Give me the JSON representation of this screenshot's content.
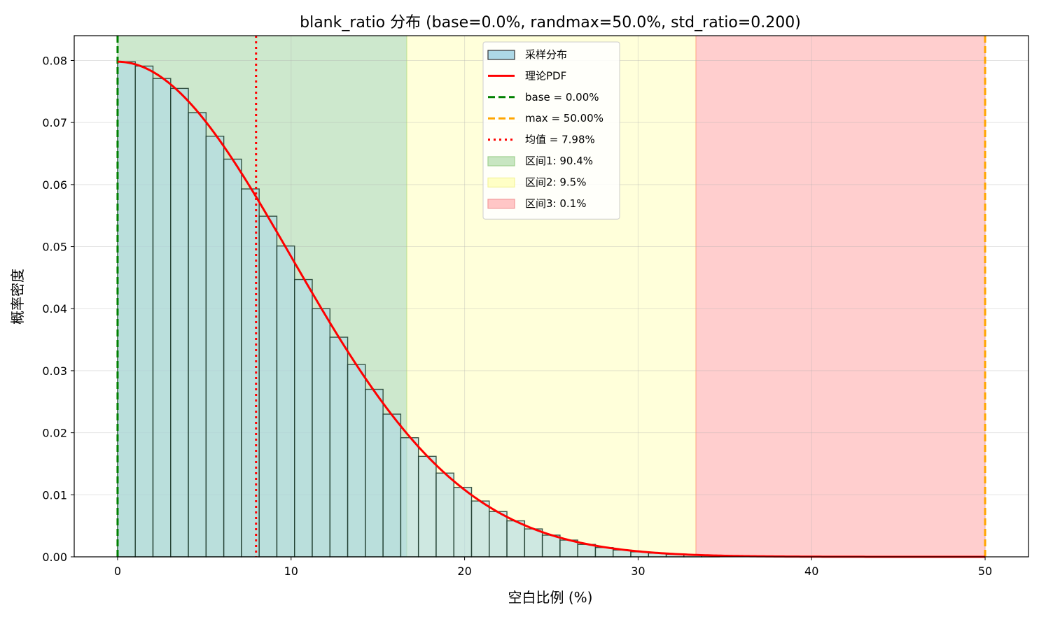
{
  "chart_data": {
    "type": "histogram",
    "title": "blank_ratio 分布 (base=0.0%, randmax=50.0%, std_ratio=0.200)",
    "xlabel": "空白比例 (%)",
    "ylabel": "概率密度",
    "xlim": [
      -2.5,
      52.5
    ],
    "ylim": [
      0,
      0.084
    ],
    "x_ticks": [
      0,
      10,
      20,
      30,
      40,
      50
    ],
    "x_tick_labels": [
      "0",
      "10",
      "20",
      "30",
      "40",
      "50"
    ],
    "y_ticks": [
      0.0,
      0.01,
      0.02,
      0.03,
      0.04,
      0.05,
      0.06,
      0.07,
      0.08
    ],
    "y_tick_labels": [
      "0.00",
      "0.01",
      "0.02",
      "0.03",
      "0.04",
      "0.05",
      "0.06",
      "0.07",
      "0.08"
    ],
    "grid": true,
    "legend_position": "top-center",
    "bins": {
      "edges_start": 0,
      "bin_width": 1.02,
      "values": [
        0.0798,
        0.0791,
        0.0771,
        0.0755,
        0.0716,
        0.0678,
        0.0641,
        0.0593,
        0.0549,
        0.0501,
        0.0447,
        0.04,
        0.0354,
        0.031,
        0.027,
        0.023,
        0.0192,
        0.0162,
        0.0135,
        0.0112,
        0.009,
        0.0073,
        0.0058,
        0.0045,
        0.0035,
        0.0027,
        0.002,
        0.0015,
        0.0011,
        0.0008,
        0.0006,
        0.0004,
        0.0003,
        0.0002
      ]
    },
    "pdf_curve": {
      "sigma": 10.0,
      "peak": 0.0798,
      "x_start": 0,
      "x_end": 50
    },
    "vlines": [
      {
        "name": "base = 0.00%",
        "x": 0.0,
        "color": "#008000",
        "style": "dashed"
      },
      {
        "name": "max = 50.00%",
        "x": 50.0,
        "color": "#FFA500",
        "style": "dashed"
      },
      {
        "name": "均值 = 7.98%",
        "x": 7.98,
        "color": "#FF0000",
        "style": "dotted"
      }
    ],
    "regions": [
      {
        "name": "区间1: 90.4%",
        "x0": 0.0,
        "x1": 16.67,
        "color": "#2ca02c"
      },
      {
        "name": "区间2: 9.5%",
        "x0": 16.67,
        "x1": 33.33,
        "color": "#ffff66"
      },
      {
        "name": "区间3: 0.1%",
        "x0": 33.33,
        "x1": 50.0,
        "color": "#ff3333"
      }
    ],
    "legend": [
      {
        "label": "采样分布",
        "kind": "patch",
        "color": "#add8e6",
        "edge": "#333333"
      },
      {
        "label": "理论PDF",
        "kind": "line",
        "color": "#FF0000",
        "style": "solid"
      },
      {
        "label": "base = 0.00%",
        "kind": "line",
        "color": "#008000",
        "style": "dashed"
      },
      {
        "label": "max = 50.00%",
        "kind": "line",
        "color": "#FFA500",
        "style": "dashed"
      },
      {
        "label": "均值 = 7.98%",
        "kind": "line",
        "color": "#FF0000",
        "style": "dotted"
      },
      {
        "label": "区间1: 90.4%",
        "kind": "patch",
        "color": "#c8e6c2",
        "edge": "#9fd08f"
      },
      {
        "label": "区间2: 9.5%",
        "kind": "patch",
        "color": "#ffffc6",
        "edge": "#f2f29a"
      },
      {
        "label": "区间3: 0.1%",
        "kind": "patch",
        "color": "#ffc6c6",
        "edge": "#f29a9a"
      }
    ],
    "colors": {
      "bar_fill": "#add8e6",
      "bar_edge": "#1c3a2a",
      "pdf": "#FF0000"
    }
  }
}
